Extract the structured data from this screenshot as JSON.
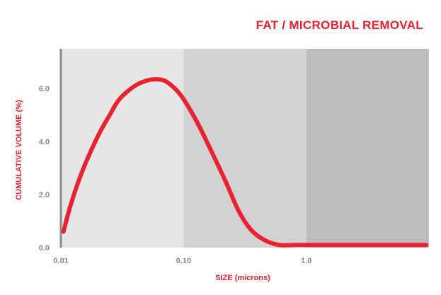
{
  "chart_data": {
    "type": "line",
    "title": "FAT / MICROBIAL REMOVAL",
    "xlabel": "SIZE (microns)",
    "ylabel": "CUMULATIVE VOLUME (%)",
    "x_scale": "log",
    "xlim": [
      0.01,
      10
    ],
    "ylim": [
      0,
      7.5
    ],
    "x_ticks": [
      {
        "value": 0.01,
        "label": "0.01"
      },
      {
        "value": 0.1,
        "label": "0.10"
      },
      {
        "value": 1.0,
        "label": "1.0"
      }
    ],
    "y_ticks": [
      {
        "value": 0,
        "label": "0.0"
      },
      {
        "value": 2,
        "label": "2.0"
      },
      {
        "value": 4,
        "label": "4.0"
      },
      {
        "value": 6,
        "label": "6.0"
      }
    ],
    "shaded_bands": [
      {
        "from": 0.01,
        "to": 0.1,
        "color": "#e6e6e8"
      },
      {
        "from": 0.1,
        "to": 1.0,
        "color": "#d2d2d4"
      },
      {
        "from": 1.0,
        "to": 10,
        "color": "#bdbdbf"
      }
    ],
    "grid": false,
    "legend": "none",
    "series": [
      {
        "color": "#e8222e",
        "x": [
          0.0105,
          0.012,
          0.015,
          0.02,
          0.025,
          0.03,
          0.04,
          0.05,
          0.058,
          0.07,
          0.085,
          0.1,
          0.13,
          0.17,
          0.22,
          0.28,
          0.35,
          0.45,
          0.6,
          0.8,
          1.0,
          2.0,
          5.0,
          9.5
        ],
        "y": [
          0.6,
          1.6,
          2.9,
          4.2,
          5.0,
          5.6,
          6.1,
          6.3,
          6.35,
          6.3,
          6.0,
          5.6,
          4.7,
          3.6,
          2.5,
          1.4,
          0.7,
          0.3,
          0.1,
          0.1,
          0.1,
          0.1,
          0.1,
          0.1
        ]
      }
    ],
    "colors": {
      "title": "#e8222e",
      "axis_label": "#e8222e",
      "tick_text": "#8a8a8a",
      "axis_line": "#8a8a8a"
    }
  }
}
